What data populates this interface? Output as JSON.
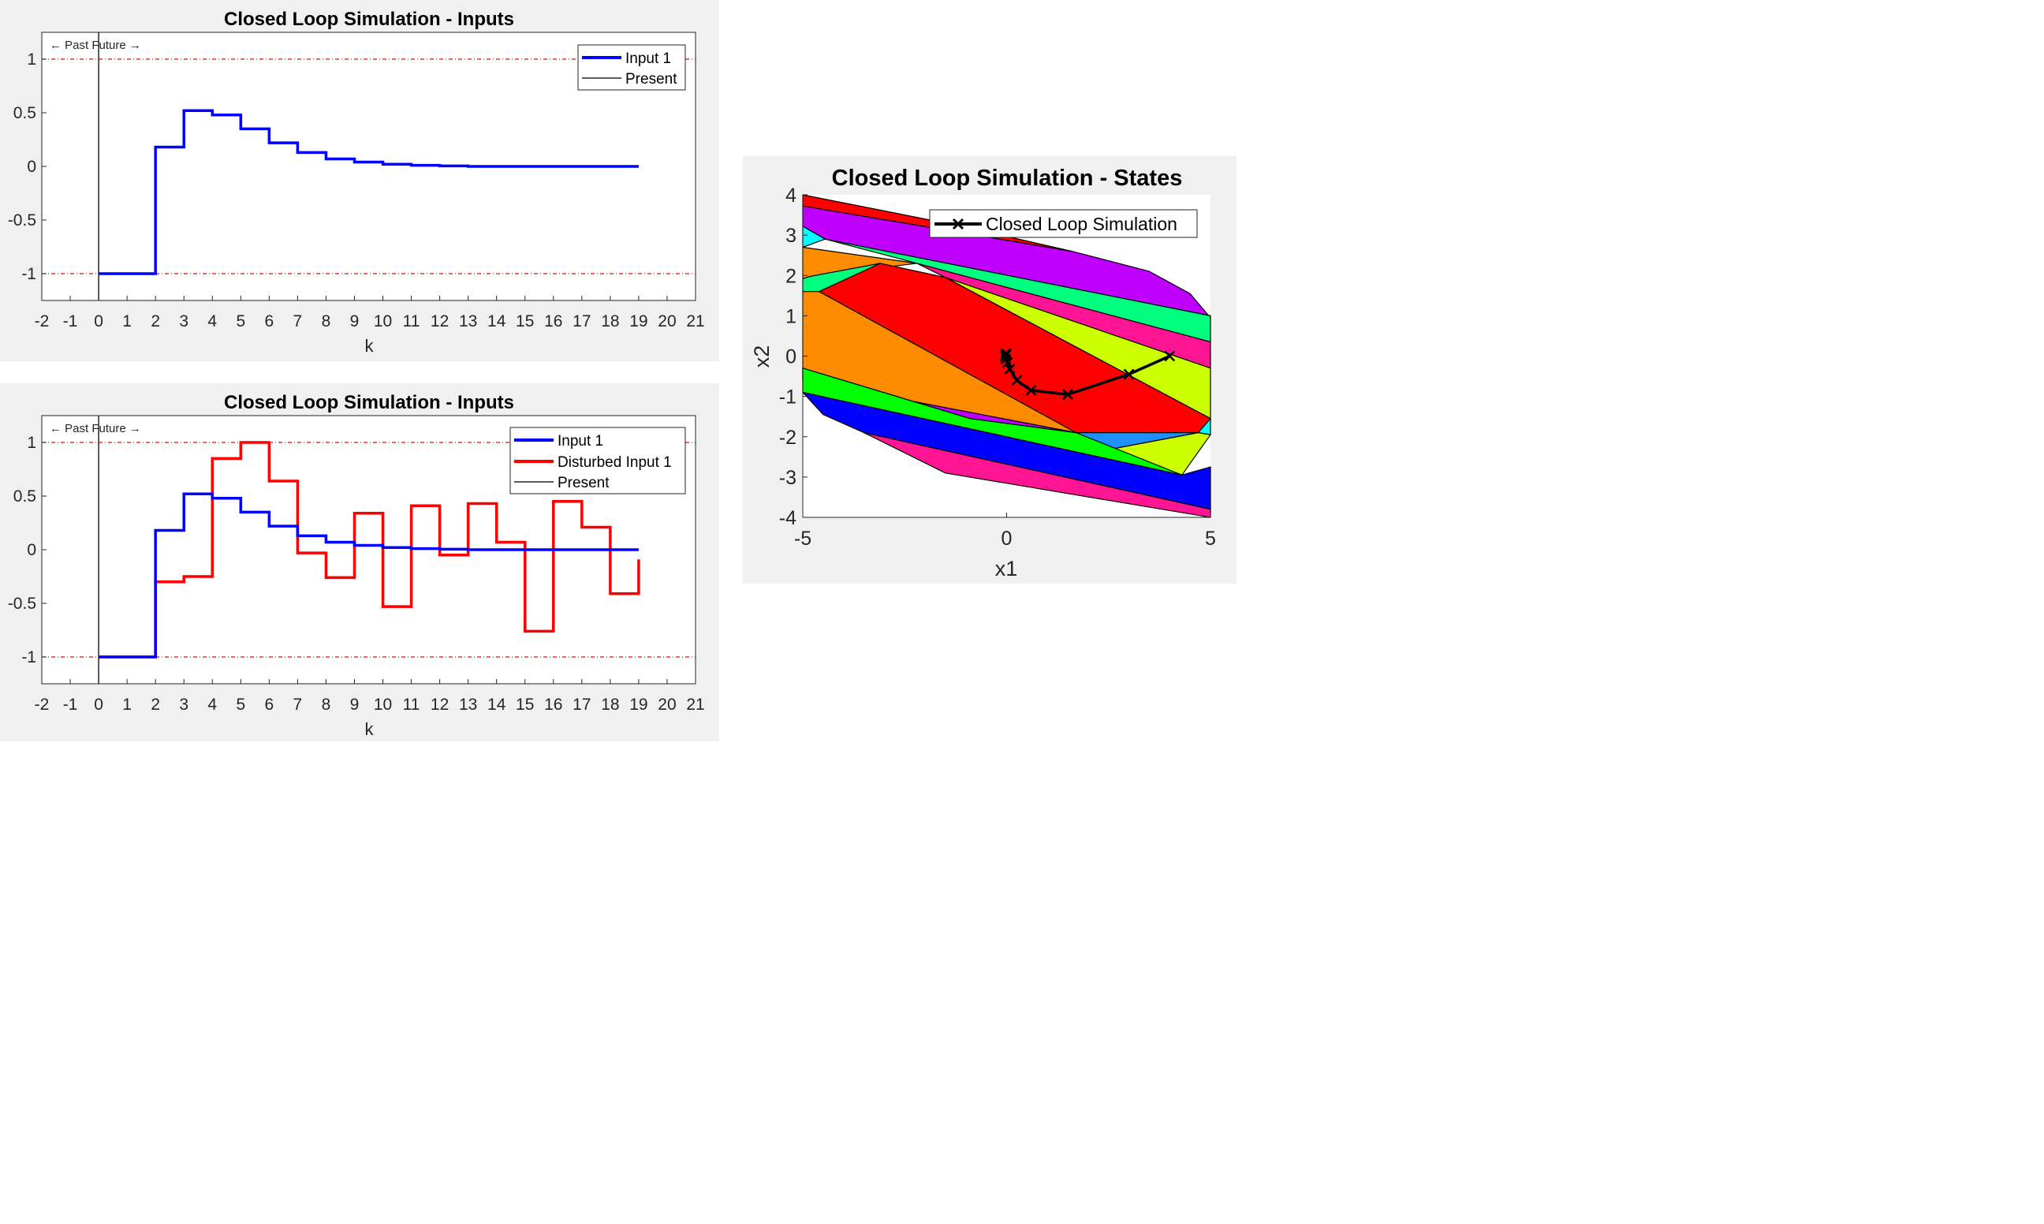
{
  "chart_data": [
    {
      "type": "line",
      "subtype": "stairs",
      "title": "Closed Loop Simulation - Inputs",
      "xlabel": "k",
      "ylabel": "",
      "xlim": [
        -2,
        21
      ],
      "ylim": [
        -1.25,
        1.25
      ],
      "xticks": [
        -2,
        -1,
        0,
        1,
        2,
        3,
        4,
        5,
        6,
        7,
        8,
        9,
        10,
        11,
        12,
        13,
        14,
        15,
        16,
        17,
        18,
        19,
        20,
        21
      ],
      "yticks": [
        -1,
        -0.5,
        0,
        0.5,
        1
      ],
      "ytick_labels": [
        "-1",
        "-0.5",
        "0",
        "0.5",
        "1"
      ],
      "annotation": "← Past Future →",
      "present_x": 0,
      "constraint_lines": [
        1,
        -1
      ],
      "legend_position": "top-right",
      "series": [
        {
          "name": "Input 1",
          "color": "#0000ff",
          "x": [
            0,
            1,
            2,
            3,
            4,
            5,
            6,
            7,
            8,
            9,
            10,
            11,
            12,
            13,
            14,
            15,
            16,
            17,
            18,
            19
          ],
          "values": [
            -1,
            -1,
            0.18,
            0.52,
            0.48,
            0.35,
            0.22,
            0.13,
            0.07,
            0.04,
            0.02,
            0.01,
            0.005,
            0,
            0,
            0,
            0,
            0,
            0,
            0
          ]
        }
      ],
      "legend": [
        "Input 1",
        "Present"
      ]
    },
    {
      "type": "line",
      "subtype": "stairs",
      "title": "Closed Loop Simulation - Inputs",
      "xlabel": "k",
      "ylabel": "",
      "xlim": [
        -2,
        21
      ],
      "ylim": [
        -1.25,
        1.25
      ],
      "xticks": [
        -2,
        -1,
        0,
        1,
        2,
        3,
        4,
        5,
        6,
        7,
        8,
        9,
        10,
        11,
        12,
        13,
        14,
        15,
        16,
        17,
        18,
        19,
        20,
        21
      ],
      "yticks": [
        -1,
        -0.5,
        0,
        0.5,
        1
      ],
      "ytick_labels": [
        "-1",
        "-0.5",
        "0",
        "0.5",
        "1"
      ],
      "annotation": "← Past Future →",
      "present_x": 0,
      "constraint_lines": [
        1,
        -1
      ],
      "legend_position": "top-right",
      "series": [
        {
          "name": "Input 1",
          "color": "#0000ff",
          "x": [
            0,
            1,
            2,
            3,
            4,
            5,
            6,
            7,
            8,
            9,
            10,
            11,
            12,
            13,
            14,
            15,
            16,
            17,
            18,
            19
          ],
          "values": [
            -1,
            -1,
            0.18,
            0.52,
            0.48,
            0.35,
            0.22,
            0.13,
            0.07,
            0.04,
            0.02,
            0.01,
            0.005,
            0,
            0,
            0,
            0,
            0,
            0,
            0
          ]
        },
        {
          "name": "Disturbed Input 1",
          "color": "#ff0000",
          "x": [
            0,
            1,
            2,
            3,
            4,
            5,
            6,
            7,
            8,
            9,
            10,
            11,
            12,
            13,
            14,
            15,
            16,
            17,
            18,
            19
          ],
          "values": [
            -1,
            -1,
            -0.3,
            -0.25,
            0.85,
            1.0,
            0.64,
            -0.03,
            -0.26,
            0.34,
            -0.53,
            0.41,
            -0.05,
            0.43,
            0.07,
            -0.76,
            0.45,
            0.21,
            -0.41,
            -0.09
          ]
        }
      ],
      "legend": [
        "Input 1",
        "Disturbed Input 1",
        "Present"
      ]
    },
    {
      "type": "line",
      "subtype": "state-space partition",
      "title": "Closed Loop Simulation - States",
      "xlabel": "x1",
      "ylabel": "x2",
      "xlim": [
        -5,
        5
      ],
      "ylim": [
        -4,
        4
      ],
      "xticks": [
        -5,
        0,
        5
      ],
      "yticks": [
        -4,
        -3,
        -2,
        -1,
        0,
        1,
        2,
        3,
        4
      ],
      "legend_position": "top-right",
      "legend": [
        "Closed Loop Simulation"
      ],
      "regions": [
        {
          "color": "#ff0000",
          "vertices": [
            [
              -5,
              4
            ],
            [
              -5,
              3.72
            ],
            [
              1.6,
              2.6
            ],
            [
              -1,
              3.2
            ]
          ]
        },
        {
          "color": "#bf00ff",
          "vertices": [
            [
              -5,
              3.72
            ],
            [
              -5,
              3.22
            ],
            [
              -4.45,
              2.9
            ],
            [
              5,
              1.0
            ],
            [
              5,
              0.95
            ],
            [
              4.5,
              1.55
            ],
            [
              3.5,
              2.1
            ],
            [
              1.6,
              2.6
            ]
          ]
        },
        {
          "color": "#00ffff",
          "vertices": [
            [
              -5,
              3.22
            ],
            [
              -4.45,
              2.9
            ],
            [
              -5,
              2.7
            ]
          ]
        },
        {
          "color": "#00ff7f",
          "vertices": [
            [
              -4.45,
              2.9
            ],
            [
              5,
              1.0
            ],
            [
              5,
              0.35
            ],
            [
              -2.2,
              2.3
            ]
          ]
        },
        {
          "color": "#ff8c00",
          "vertices": [
            [
              -5,
              2.7
            ],
            [
              -2.2,
              2.3
            ],
            [
              -4.8,
              1.98
            ],
            [
              -5,
              1.92
            ]
          ]
        },
        {
          "color": "#00ff7f",
          "vertices": [
            [
              -5,
              1.92
            ],
            [
              -4.8,
              1.98
            ],
            [
              -3.1,
              2.3
            ],
            [
              -4.6,
              1.6
            ],
            [
              -5,
              1.6
            ]
          ]
        },
        {
          "color": "#ff1493",
          "vertices": [
            [
              -2.2,
              2.3
            ],
            [
              -1.5,
              1.95
            ],
            [
              5,
              -0.3
            ],
            [
              5,
              0.35
            ]
          ]
        },
        {
          "color": "#ccff00",
          "vertices": [
            [
              -1.5,
              1.95
            ],
            [
              5,
              -1.55
            ],
            [
              5,
              -0.3
            ]
          ]
        },
        {
          "color": "#ff0000",
          "vertices": [
            [
              -4.6,
              1.6
            ],
            [
              -3.1,
              2.3
            ],
            [
              -1.5,
              1.95
            ],
            [
              5,
              -1.55
            ],
            [
              4.7,
              -1.9
            ],
            [
              1.7,
              -1.9
            ]
          ]
        },
        {
          "color": "#ff8c00",
          "vertices": [
            [
              -5,
              1.6
            ],
            [
              -4.6,
              1.6
            ],
            [
              1.7,
              -1.9
            ],
            [
              -5,
              -0.6
            ]
          ]
        },
        {
          "color": "#bf00ff",
          "vertices": [
            [
              -5,
              -0.6
            ],
            [
              1.7,
              -1.9
            ],
            [
              -0.9,
              -1.55
            ],
            [
              -5,
              -0.3
            ]
          ]
        },
        {
          "color": "#00ffff",
          "vertices": [
            [
              4.7,
              -1.9
            ],
            [
              5,
              -1.55
            ],
            [
              5,
              -1.95
            ]
          ]
        },
        {
          "color": "#1e90ff",
          "vertices": [
            [
              1.7,
              -1.9
            ],
            [
              4.7,
              -1.9
            ],
            [
              2.6,
              -2.3
            ]
          ]
        },
        {
          "color": "#ccff00",
          "vertices": [
            [
              2.6,
              -2.3
            ],
            [
              4.7,
              -1.9
            ],
            [
              5,
              -1.95
            ],
            [
              4.3,
              -2.95
            ]
          ]
        },
        {
          "color": "#00ff00",
          "vertices": [
            [
              -5,
              -0.3
            ],
            [
              -0.9,
              -1.55
            ],
            [
              1.7,
              -1.9
            ],
            [
              4.3,
              -2.95
            ],
            [
              -5,
              -0.9
            ]
          ]
        },
        {
          "color": "#0000ff",
          "vertices": [
            [
              -5,
              -0.9
            ],
            [
              4.3,
              -2.95
            ],
            [
              5,
              -2.75
            ],
            [
              5,
              -3.8
            ],
            [
              -3.5,
              -1.9
            ],
            [
              -4.5,
              -1.45
            ],
            [
              -5,
              -0.9
            ]
          ]
        },
        {
          "color": "#ff1493",
          "vertices": [
            [
              -3.5,
              -1.9
            ],
            [
              5,
              -3.8
            ],
            [
              5,
              -4.0
            ],
            [
              -1.5,
              -2.9
            ]
          ]
        }
      ],
      "series": [
        {
          "name": "Closed Loop Simulation",
          "color": "#000000",
          "x": [
            4.0,
            3.0,
            1.5,
            0.6,
            0.25,
            0.08,
            0.02,
            -0.02,
            -0.04,
            -0.03,
            0.0
          ],
          "values": [
            0.0,
            -0.45,
            -0.95,
            -0.85,
            -0.6,
            -0.32,
            -0.16,
            -0.07,
            0.0,
            0.06,
            0.05
          ]
        }
      ]
    }
  ]
}
